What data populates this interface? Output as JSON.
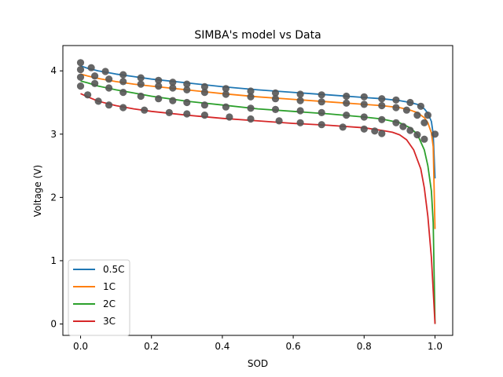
{
  "chart_data": {
    "type": "line",
    "title": "SIMBA's model vs Data",
    "xlabel": "SOD",
    "ylabel": "Voltage (V)",
    "xlim": [
      -0.05,
      1.05
    ],
    "ylim": [
      -0.18,
      4.4
    ],
    "xticks": [
      0.0,
      0.2,
      0.4,
      0.6,
      0.8,
      1.0
    ],
    "xtick_labels": [
      "0.0",
      "0.2",
      "0.4",
      "0.6",
      "0.8",
      "1.0"
    ],
    "yticks": [
      0,
      1,
      2,
      3,
      4
    ],
    "ytick_labels": [
      "0",
      "1",
      "2",
      "3",
      "4"
    ],
    "grid": false,
    "legend_position": "lower-left",
    "marker_color": "#555555",
    "series": [
      {
        "name": "0.5C",
        "color": "#1f77b4",
        "model": [
          [
            0.0,
            4.08
          ],
          [
            0.02,
            4.04
          ],
          [
            0.05,
            4.0
          ],
          [
            0.1,
            3.95
          ],
          [
            0.15,
            3.91
          ],
          [
            0.2,
            3.87
          ],
          [
            0.3,
            3.81
          ],
          [
            0.4,
            3.75
          ],
          [
            0.5,
            3.7
          ],
          [
            0.6,
            3.66
          ],
          [
            0.7,
            3.62
          ],
          [
            0.8,
            3.58
          ],
          [
            0.85,
            3.56
          ],
          [
            0.9,
            3.53
          ],
          [
            0.93,
            3.5
          ],
          [
            0.95,
            3.47
          ],
          [
            0.97,
            3.4
          ],
          [
            0.98,
            3.33
          ],
          [
            0.99,
            3.2
          ],
          [
            0.995,
            3.0
          ],
          [
            1.0,
            2.3
          ]
        ],
        "measured": [
          [
            0.0,
            4.13
          ],
          [
            0.03,
            4.05
          ],
          [
            0.07,
            3.99
          ],
          [
            0.12,
            3.94
          ],
          [
            0.17,
            3.89
          ],
          [
            0.22,
            3.85
          ],
          [
            0.26,
            3.82
          ],
          [
            0.3,
            3.79
          ],
          [
            0.35,
            3.75
          ],
          [
            0.41,
            3.72
          ],
          [
            0.48,
            3.68
          ],
          [
            0.55,
            3.65
          ],
          [
            0.62,
            3.63
          ],
          [
            0.68,
            3.62
          ],
          [
            0.75,
            3.6
          ],
          [
            0.8,
            3.59
          ],
          [
            0.85,
            3.56
          ],
          [
            0.89,
            3.54
          ],
          [
            0.93,
            3.5
          ],
          [
            0.96,
            3.44
          ],
          [
            0.98,
            3.3
          ],
          [
            1.0,
            3.0
          ]
        ]
      },
      {
        "name": "1C",
        "color": "#ff7f0e",
        "model": [
          [
            0.0,
            3.95
          ],
          [
            0.02,
            3.92
          ],
          [
            0.05,
            3.88
          ],
          [
            0.1,
            3.83
          ],
          [
            0.15,
            3.79
          ],
          [
            0.2,
            3.76
          ],
          [
            0.3,
            3.7
          ],
          [
            0.4,
            3.64
          ],
          [
            0.5,
            3.59
          ],
          [
            0.6,
            3.55
          ],
          [
            0.7,
            3.51
          ],
          [
            0.8,
            3.47
          ],
          [
            0.85,
            3.45
          ],
          [
            0.9,
            3.42
          ],
          [
            0.93,
            3.38
          ],
          [
            0.95,
            3.34
          ],
          [
            0.97,
            3.26
          ],
          [
            0.98,
            3.18
          ],
          [
            0.99,
            3.02
          ],
          [
            0.995,
            2.8
          ],
          [
            1.0,
            1.5
          ]
        ],
        "measured": [
          [
            0.0,
            4.02
          ],
          [
            0.04,
            3.92
          ],
          [
            0.08,
            3.87
          ],
          [
            0.12,
            3.83
          ],
          [
            0.17,
            3.79
          ],
          [
            0.22,
            3.76
          ],
          [
            0.26,
            3.73
          ],
          [
            0.3,
            3.7
          ],
          [
            0.35,
            3.66
          ],
          [
            0.41,
            3.63
          ],
          [
            0.48,
            3.59
          ],
          [
            0.55,
            3.56
          ],
          [
            0.62,
            3.53
          ],
          [
            0.68,
            3.51
          ],
          [
            0.75,
            3.49
          ],
          [
            0.8,
            3.47
          ],
          [
            0.85,
            3.45
          ],
          [
            0.89,
            3.42
          ],
          [
            0.92,
            3.38
          ],
          [
            0.95,
            3.3
          ],
          [
            0.97,
            3.18
          ]
        ]
      },
      {
        "name": "2C",
        "color": "#2ca02c",
        "model": [
          [
            0.0,
            3.84
          ],
          [
            0.02,
            3.81
          ],
          [
            0.05,
            3.76
          ],
          [
            0.1,
            3.7
          ],
          [
            0.15,
            3.65
          ],
          [
            0.2,
            3.6
          ],
          [
            0.3,
            3.52
          ],
          [
            0.4,
            3.46
          ],
          [
            0.5,
            3.4
          ],
          [
            0.6,
            3.36
          ],
          [
            0.7,
            3.32
          ],
          [
            0.8,
            3.27
          ],
          [
            0.85,
            3.24
          ],
          [
            0.9,
            3.18
          ],
          [
            0.93,
            3.1
          ],
          [
            0.95,
            3.0
          ],
          [
            0.97,
            2.75
          ],
          [
            0.98,
            2.5
          ],
          [
            0.99,
            2.1
          ],
          [
            0.995,
            1.6
          ],
          [
            1.0,
            0.0
          ]
        ],
        "measured": [
          [
            0.0,
            3.9
          ],
          [
            0.04,
            3.8
          ],
          [
            0.08,
            3.73
          ],
          [
            0.12,
            3.66
          ],
          [
            0.17,
            3.6
          ],
          [
            0.22,
            3.56
          ],
          [
            0.26,
            3.53
          ],
          [
            0.3,
            3.5
          ],
          [
            0.35,
            3.46
          ],
          [
            0.41,
            3.43
          ],
          [
            0.48,
            3.41
          ],
          [
            0.55,
            3.39
          ],
          [
            0.62,
            3.37
          ],
          [
            0.68,
            3.34
          ],
          [
            0.75,
            3.3
          ],
          [
            0.8,
            3.27
          ],
          [
            0.85,
            3.23
          ],
          [
            0.89,
            3.18
          ],
          [
            0.91,
            3.12
          ],
          [
            0.93,
            3.06
          ],
          [
            0.95,
            2.99
          ],
          [
            0.97,
            2.92
          ]
        ]
      },
      {
        "name": "3C",
        "color": "#d62728",
        "model": [
          [
            0.0,
            3.64
          ],
          [
            0.02,
            3.59
          ],
          [
            0.05,
            3.52
          ],
          [
            0.1,
            3.45
          ],
          [
            0.15,
            3.4
          ],
          [
            0.2,
            3.36
          ],
          [
            0.3,
            3.3
          ],
          [
            0.4,
            3.25
          ],
          [
            0.5,
            3.21
          ],
          [
            0.6,
            3.17
          ],
          [
            0.7,
            3.14
          ],
          [
            0.8,
            3.1
          ],
          [
            0.85,
            3.06
          ],
          [
            0.88,
            3.03
          ],
          [
            0.9,
            2.99
          ],
          [
            0.92,
            2.91
          ],
          [
            0.94,
            2.75
          ],
          [
            0.96,
            2.45
          ],
          [
            0.97,
            2.15
          ],
          [
            0.98,
            1.7
          ],
          [
            0.99,
            1.05
          ],
          [
            1.0,
            0.0
          ]
        ],
        "measured": [
          [
            0.0,
            3.76
          ],
          [
            0.02,
            3.62
          ],
          [
            0.05,
            3.52
          ],
          [
            0.08,
            3.46
          ],
          [
            0.12,
            3.42
          ],
          [
            0.18,
            3.38
          ],
          [
            0.25,
            3.34
          ],
          [
            0.3,
            3.32
          ],
          [
            0.35,
            3.3
          ],
          [
            0.42,
            3.27
          ],
          [
            0.48,
            3.24
          ],
          [
            0.56,
            3.21
          ],
          [
            0.62,
            3.18
          ],
          [
            0.68,
            3.15
          ],
          [
            0.74,
            3.11
          ],
          [
            0.8,
            3.08
          ],
          [
            0.83,
            3.05
          ],
          [
            0.85,
            3.01
          ]
        ]
      }
    ]
  }
}
